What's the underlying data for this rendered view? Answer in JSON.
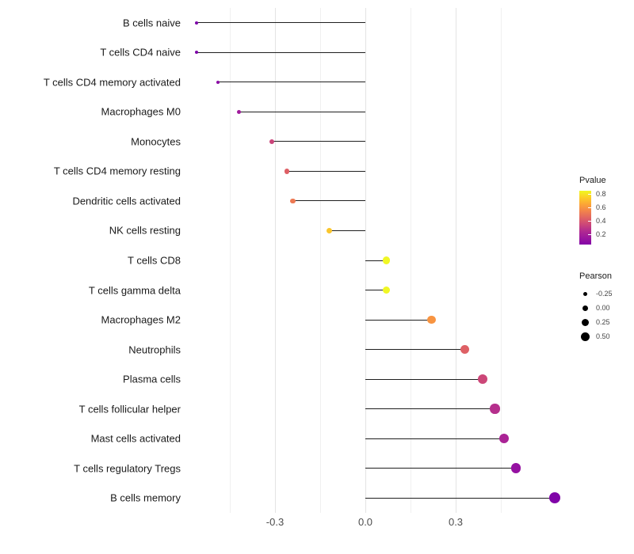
{
  "chart_data": {
    "type": "scatter",
    "subtype": "lollipop",
    "orientation": "horizontal",
    "title": "",
    "xlabel": "",
    "ylabel": "",
    "xlim": [
      -0.59,
      0.65
    ],
    "grid": true,
    "x_ticks": [
      "-0.3",
      "0.0",
      "0.3"
    ],
    "x_tick_values": [
      -0.3,
      0.0,
      0.3
    ],
    "x_minor_values": [
      -0.45,
      -0.15,
      0.15,
      0.45
    ],
    "points": [
      {
        "label": "B cells naive",
        "pearson": -0.56,
        "pvalue": 0.03,
        "color": "#7D03A8"
      },
      {
        "label": "T cells CD4 naive",
        "pearson": -0.56,
        "pvalue": 0.03,
        "color": "#7D03A8"
      },
      {
        "label": "T cells CD4 memory activated",
        "pearson": -0.49,
        "pvalue": 0.07,
        "color": "#8B0AA5"
      },
      {
        "label": "Macrophages M0",
        "pearson": -0.42,
        "pvalue": 0.12,
        "color": "#A01A9C"
      },
      {
        "label": "Monocytes",
        "pearson": -0.31,
        "pvalue": 0.28,
        "color": "#CA457A"
      },
      {
        "label": "T cells CD4 memory resting",
        "pearson": -0.26,
        "pvalue": 0.38,
        "color": "#DE5F65"
      },
      {
        "label": "Dendritic cells activated",
        "pearson": -0.24,
        "pvalue": 0.45,
        "color": "#ED7953"
      },
      {
        "label": "NK cells resting",
        "pearson": -0.12,
        "pvalue": 0.68,
        "color": "#FAC62D"
      },
      {
        "label": "T cells CD8",
        "pearson": 0.07,
        "pvalue": 0.8,
        "color": "#F0F724"
      },
      {
        "label": "T cells gamma delta",
        "pearson": 0.07,
        "pvalue": 0.8,
        "color": "#F0F724"
      },
      {
        "label": "Macrophages M2",
        "pearson": 0.22,
        "pvalue": 0.5,
        "color": "#F89441"
      },
      {
        "label": "Neutrophils",
        "pearson": 0.33,
        "pvalue": 0.33,
        "color": "#DE6065"
      },
      {
        "label": "Plasma cells",
        "pearson": 0.39,
        "pvalue": 0.24,
        "color": "#CC4778"
      },
      {
        "label": "T cells follicular helper",
        "pearson": 0.43,
        "pvalue": 0.17,
        "color": "#B52F8C"
      },
      {
        "label": "Mast cells activated",
        "pearson": 0.46,
        "pvalue": 0.14,
        "color": "#AA2395"
      },
      {
        "label": "T cells regulatory  Tregs",
        "pearson": 0.5,
        "pvalue": 0.09,
        "color": "#9511A1"
      },
      {
        "label": "B cells memory",
        "pearson": 0.63,
        "pvalue": 0.03,
        "color": "#8004A8"
      }
    ],
    "legend": {
      "pvalue": {
        "title": "Pvalue",
        "ticks": [
          "0.8",
          "0.6",
          "0.4",
          "0.2"
        ],
        "gradient": [
          "#F0F921",
          "#FCCE25",
          "#FCA636",
          "#F2844B",
          "#E16462",
          "#CC4778",
          "#B12A90",
          "#9C179E",
          "#8305A7"
        ]
      },
      "pearson": {
        "title": "Pearson",
        "items": [
          {
            "label": "-0.25",
            "size": 5
          },
          {
            "label": "0.00",
            "size": 7
          },
          {
            "label": "0.25",
            "size": 9
          },
          {
            "label": "0.50",
            "size": 11
          }
        ]
      }
    },
    "colors": {
      "stem": "#1f1f1f",
      "gridline_major": "#e4e4e4",
      "gridline_minor": "#f0f0f0",
      "axis_text": "#4d4d4d",
      "category_text": "#1a1a1a"
    }
  }
}
